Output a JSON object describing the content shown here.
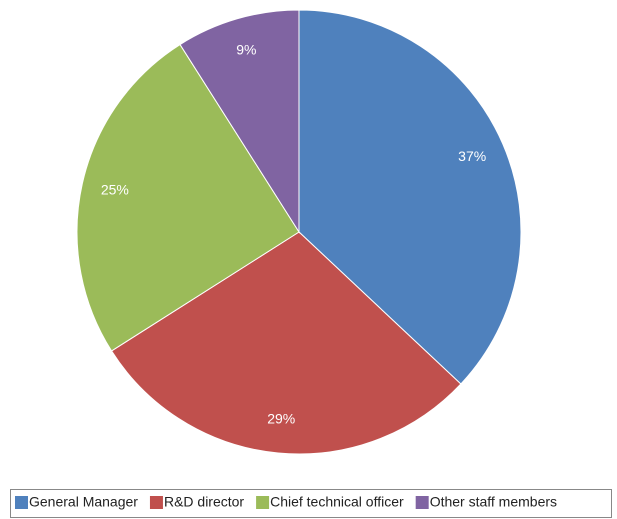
{
  "chart_data": {
    "type": "pie",
    "categories": [
      "General Manager",
      "R&D director",
      "Chief technical officer",
      "Other staff members"
    ],
    "values": [
      37,
      29,
      25,
      9
    ],
    "value_labels": [
      "37%",
      "29%",
      "25%",
      "9%"
    ],
    "colors": [
      "#4f81bd",
      "#c0504d",
      "#9bbb59",
      "#8064a2"
    ],
    "legend": "bottom"
  }
}
